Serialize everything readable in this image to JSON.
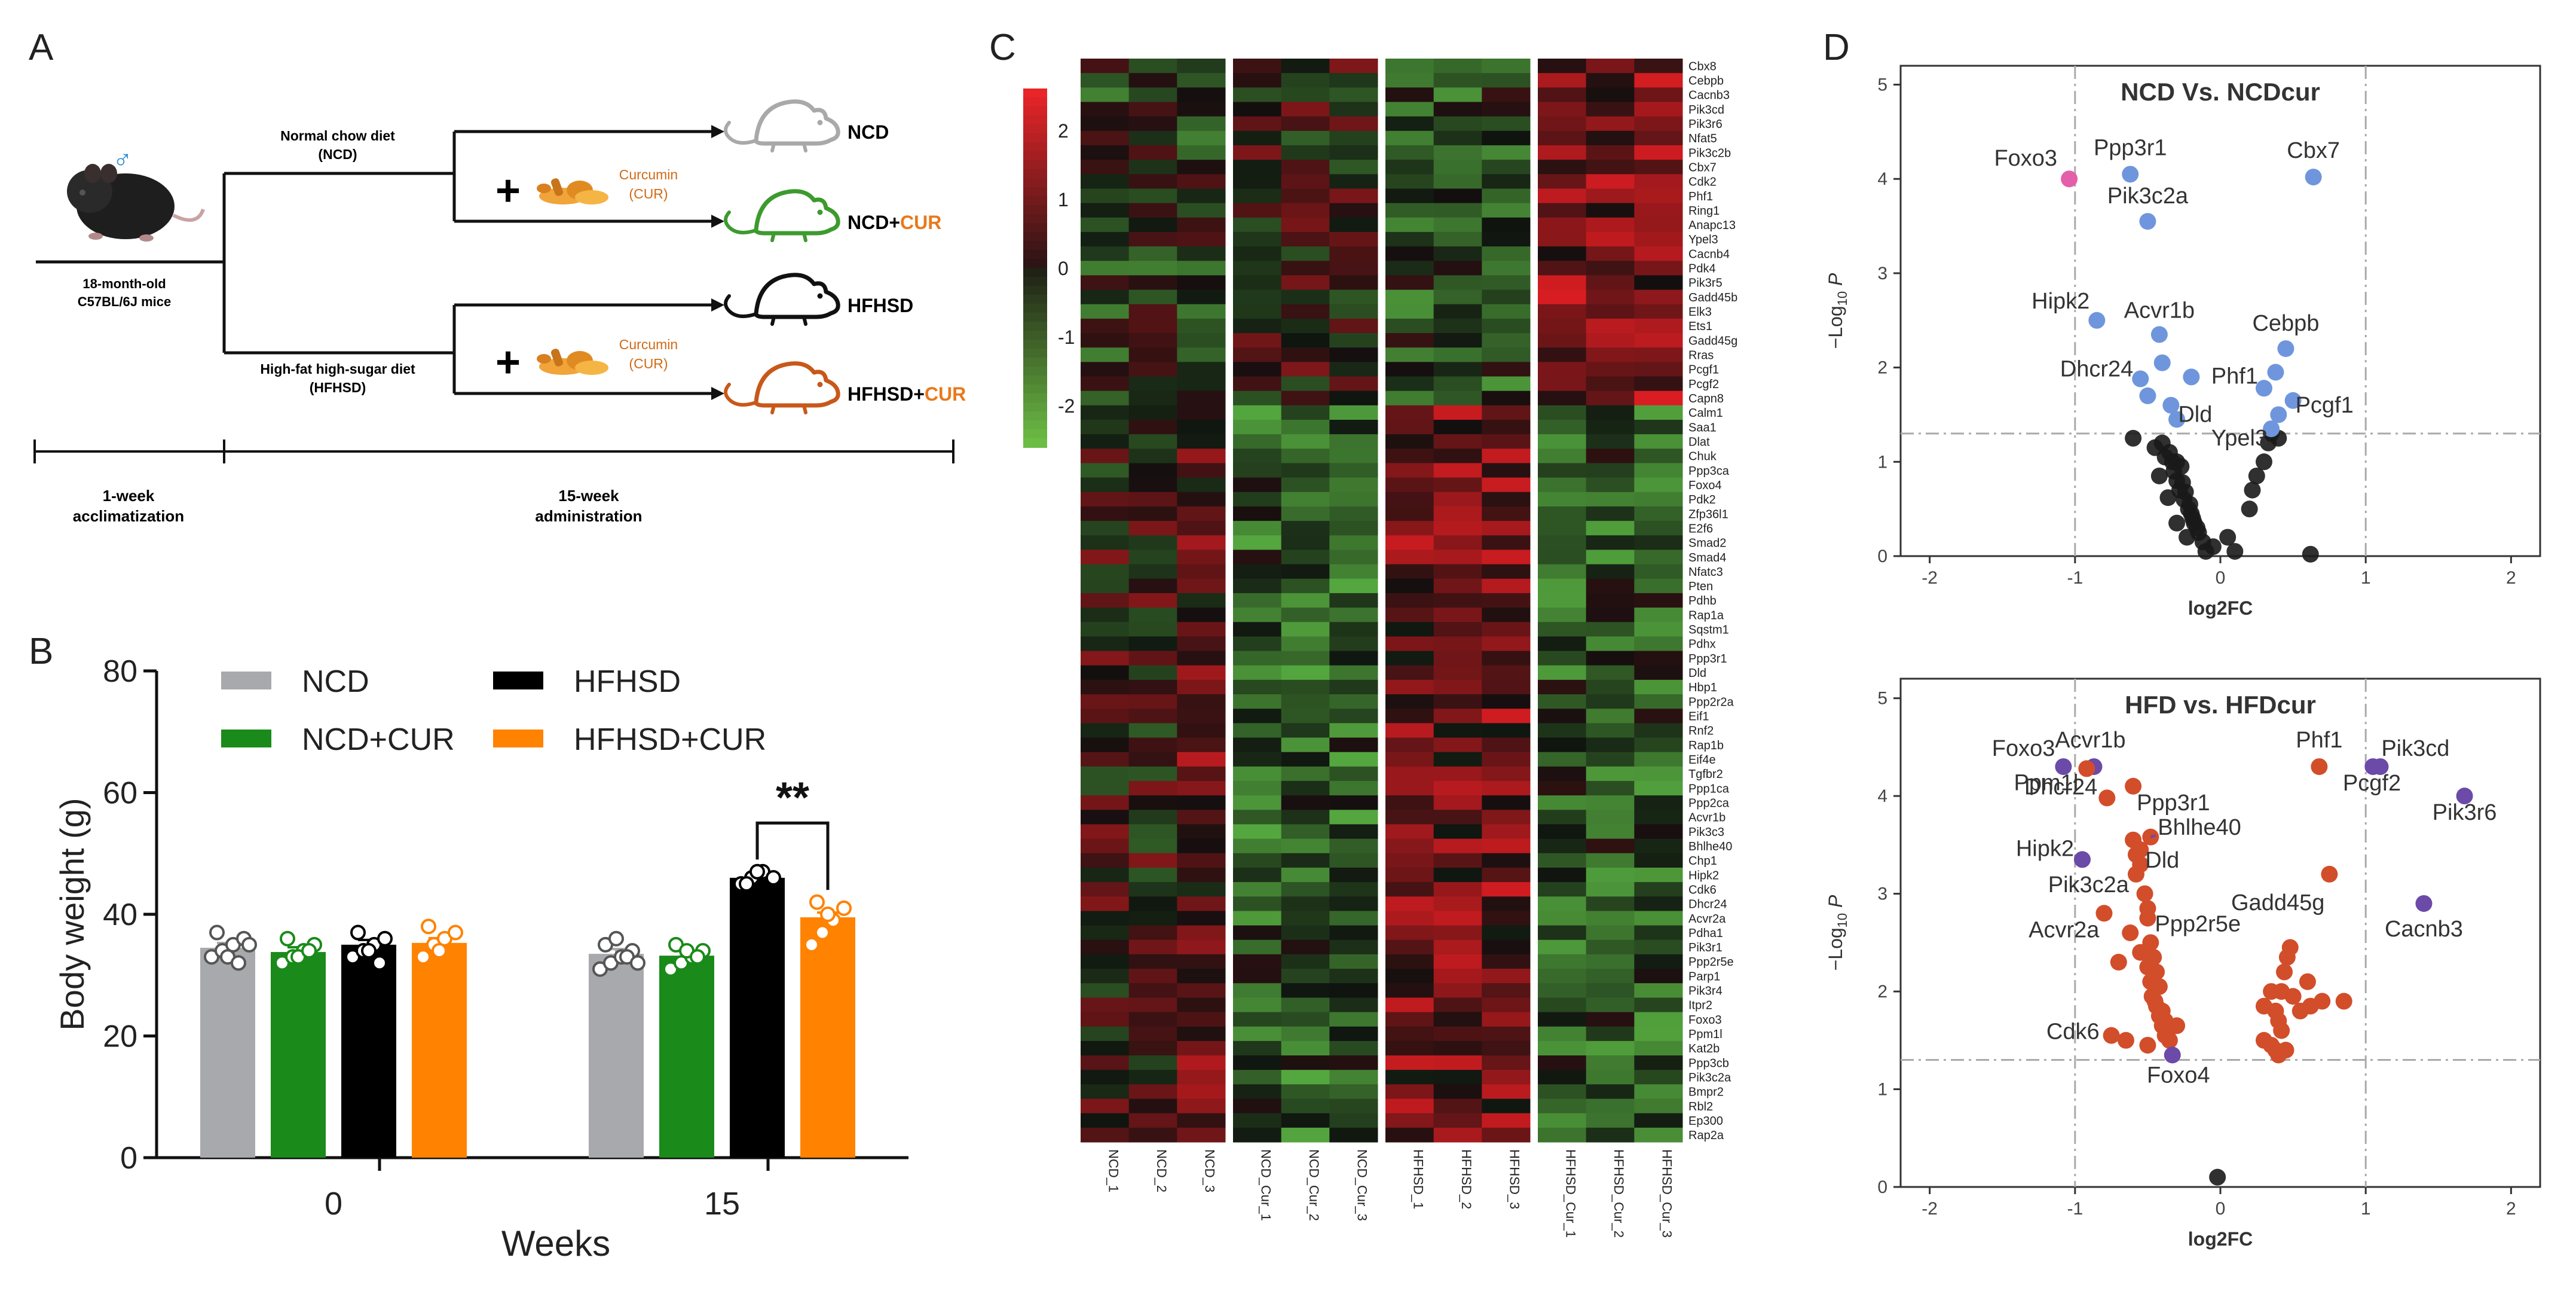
{
  "panels": {
    "a": "A",
    "b": "B",
    "c": "C",
    "d": "D"
  },
  "colors": {
    "ncd": "#a7a9ac",
    "ncdcur": "#1a8a1a",
    "hfhsd": "#000000",
    "hfhsdcur": "#ff8200",
    "heat_hi": "#e8252b",
    "heat_lo": "#6cbd45",
    "volc_blue": "#6f96dd",
    "volc_pink": "#e45fa9",
    "volc_black": "#1a1a1a",
    "volc_red": "#d24d2a",
    "volc_purple": "#6b4aa8"
  },
  "icons": {
    "mouse": "mouse-icon",
    "turmeric": "turmeric-icon",
    "male": "male-symbol-icon",
    "plus": "plus-icon"
  },
  "panel_a": {
    "male_symbol": "♂",
    "mouse_label_line1": "18-month-old",
    "mouse_label_line2": "C57BL/6J mice",
    "ncd_diet_line1": "Normal chow diet",
    "ncd_diet_line2": "(NCD)",
    "hfhsd_diet_line1": "High-fat high-sugar diet",
    "hfhsd_diet_line2": "(HFHSD)",
    "plus": "+",
    "curcumin_line1": "Curcumin",
    "curcumin_line2": "(CUR)",
    "groups": [
      {
        "base": "NCD",
        "suffix": ""
      },
      {
        "base": "NCD+",
        "suffix": "CUR"
      },
      {
        "base": "HFHSD",
        "suffix": ""
      },
      {
        "base": "HFHSD+",
        "suffix": "CUR"
      }
    ],
    "timeline_left_line1": "1-week",
    "timeline_left_line2": "acclimatization",
    "timeline_right_line1": "15-week",
    "timeline_right_line2": "administration"
  },
  "chart_data": [
    {
      "panel": "B",
      "type": "bar",
      "ylabel": "Body weight (g)",
      "xlabel": "Weeks",
      "ylim": [
        0,
        80
      ],
      "yticks": [
        0,
        20,
        40,
        60,
        80
      ],
      "categories": [
        "0",
        "15"
      ],
      "legend": [
        "NCD",
        "HFHSD",
        "NCD+CUR",
        "HFHSD+CUR"
      ],
      "significance": "**",
      "series": [
        {
          "name": "NCD",
          "values": [
            34.5,
            33.5
          ],
          "points": [
            [
              33,
              34,
              35,
              36,
              37,
              33,
              32,
              35
            ],
            [
              31,
              32,
              33,
              34,
              35,
              36,
              33,
              32
            ]
          ]
        },
        {
          "name": "NCD+CUR",
          "values": [
            33.8,
            33.2
          ],
          "points": [
            [
              32,
              33,
              34,
              35,
              36,
              33,
              34
            ],
            [
              31,
              32,
              33,
              34,
              35,
              34,
              33
            ]
          ]
        },
        {
          "name": "HFHSD",
          "values": [
            35.0,
            46.0
          ],
          "points": [
            [
              33,
              34,
              35,
              36,
              37,
              34,
              32
            ],
            [
              45,
              46,
              47,
              46,
              45,
              47
            ]
          ]
        },
        {
          "name": "HFHSD+CUR",
          "values": [
            35.3,
            39.5
          ],
          "points": [
            [
              33,
              35,
              36,
              37,
              38,
              34
            ],
            [
              35,
              37,
              39,
              41,
              42,
              40
            ]
          ]
        }
      ]
    },
    {
      "panel": "C",
      "type": "heatmap",
      "color_scale": [
        -2,
        2
      ],
      "colorbar_ticks": [
        "2",
        "1",
        "0",
        "-1",
        "-2"
      ],
      "samples": [
        "NCD_1",
        "NCD_2",
        "NCD_3",
        "NCD_Cur_1",
        "NCD_Cur_2",
        "NCD_Cur_3",
        "HFHSD_1",
        "HFHSD_2",
        "HFHSD_3",
        "HFHSD_Cur_1",
        "HFHSD_Cur_2",
        "HFHSD_Cur_3"
      ],
      "genes": [
        "Cbx8",
        "Cebpb",
        "Cacnb3",
        "Pik3cd",
        "Pik3r6",
        "Nfat5",
        "Pik3c2b",
        "Cbx7",
        "Cdk2",
        "Phf1",
        "Ring1",
        "Anapc13",
        "Ypel3",
        "Cacnb4",
        "Pdk4",
        "Pik3r5",
        "Gadd45b",
        "Elk3",
        "Ets1",
        "Gadd45g",
        "Rras",
        "Pcgf1",
        "Pcgf2",
        "Capn8",
        "Calm1",
        "Saa1",
        "Dlat",
        "Chuk",
        "Ppp3ca",
        "Foxo4",
        "Pdk2",
        "Zfp36l1",
        "E2f6",
        "Smad2",
        "Smad4",
        "Nfatc3",
        "Pten",
        "Pdhb",
        "Rap1a",
        "Sqstm1",
        "Pdhx",
        "Ppp3r1",
        "Dld",
        "Hbp1",
        "Ppp2r2a",
        "Eif1",
        "Rnf2",
        "Rap1b",
        "Eif4e",
        "Tgfbr2",
        "Ppp1ca",
        "Ppp2ca",
        "Acvr1b",
        "Pik3c3",
        "Bhlhe40",
        "Chp1",
        "Hipk2",
        "Cdk6",
        "Dhcr24",
        "Acvr2a",
        "Pdha1",
        "Pik3r1",
        "Ppp2r5e",
        "Parp1",
        "Pik3r4",
        "Itpr2",
        "Foxo3",
        "Ppm1l",
        "Kat2b",
        "Ppp3cb",
        "Pik3c2a",
        "Bmpr2",
        "Rbl2",
        "Ep300",
        "Rap2a"
      ]
    },
    {
      "panel": "D1",
      "type": "scatter",
      "title": "NCD Vs. NCDcur",
      "xlabel": "log2FC",
      "ylabel_main": "−Log",
      "ylabel_sub": "10",
      "ylabel_p": "P",
      "xlim": [
        -2.2,
        2.2
      ],
      "ylim": [
        0,
        5.2
      ],
      "xticks": [
        "-2",
        "-1",
        "0",
        "1",
        "2"
      ],
      "yticks": [
        "0",
        "1",
        "2",
        "3",
        "4",
        "5"
      ],
      "vlines": [
        -1,
        1
      ],
      "hline": 1.3,
      "labeled_points": [
        {
          "gene": "Foxo3",
          "x": -1.04,
          "y": 4.0,
          "c": "pink"
        },
        {
          "gene": "Ppp3r1",
          "x": -0.62,
          "y": 4.05,
          "c": "blue"
        },
        {
          "gene": "Cbx7",
          "x": 0.64,
          "y": 4.02,
          "c": "blue"
        },
        {
          "gene": "Pik3c2a",
          "x": -0.5,
          "y": 3.55,
          "c": "blue"
        },
        {
          "gene": "Hipk2",
          "x": -0.85,
          "y": 2.5,
          "c": "blue"
        },
        {
          "gene": "Acvr1b",
          "x": -0.42,
          "y": 2.35,
          "c": "blue"
        },
        {
          "gene": "Dhcr24",
          "x": -0.55,
          "y": 1.88,
          "c": "blue"
        },
        {
          "gene": "Dld",
          "x": -0.34,
          "y": 1.6,
          "c": "blue"
        },
        {
          "gene": "Cebpb",
          "x": 0.45,
          "y": 2.2,
          "c": "blue"
        },
        {
          "gene": "Phf1",
          "x": 0.3,
          "y": 1.78,
          "c": "blue"
        },
        {
          "gene": "Pcgf1",
          "x": 0.5,
          "y": 1.65,
          "c": "blue"
        },
        {
          "gene": "Ypel3",
          "x": 0.35,
          "y": 1.35,
          "c": "blue"
        }
      ],
      "extra_blue": [
        [
          -0.4,
          2.05
        ],
        [
          -0.5,
          1.7
        ],
        [
          -0.3,
          1.45
        ],
        [
          0.38,
          1.95
        ],
        [
          0.4,
          1.5
        ],
        [
          -0.2,
          1.9
        ]
      ],
      "black_points": [
        [
          -0.6,
          1.25
        ],
        [
          -0.4,
          1.2
        ],
        [
          -0.35,
          1.1
        ],
        [
          -0.3,
          1.0
        ],
        [
          -0.32,
          0.9
        ],
        [
          -0.3,
          0.8
        ],
        [
          -0.28,
          0.7
        ],
        [
          -0.25,
          0.6
        ],
        [
          -0.22,
          0.5
        ],
        [
          -0.2,
          0.45
        ],
        [
          -0.18,
          0.35
        ],
        [
          -0.15,
          0.25
        ],
        [
          -0.12,
          0.15
        ],
        [
          -0.1,
          0.05
        ],
        [
          -0.38,
          1.05
        ],
        [
          -0.27,
          0.95
        ],
        [
          -0.26,
          0.78
        ],
        [
          -0.24,
          0.68
        ],
        [
          -0.21,
          0.55
        ],
        [
          -0.19,
          0.4
        ],
        [
          -0.16,
          0.3
        ],
        [
          -0.42,
          0.85
        ],
        [
          -0.36,
          0.62
        ],
        [
          -0.3,
          0.35
        ],
        [
          -0.05,
          0.1
        ],
        [
          0.05,
          0.2
        ],
        [
          0.1,
          0.05
        ],
        [
          0.2,
          0.5
        ],
        [
          0.22,
          0.7
        ],
        [
          0.25,
          0.85
        ],
        [
          0.3,
          1.0
        ],
        [
          0.33,
          1.2
        ],
        [
          0.35,
          1.3
        ],
        [
          0.4,
          1.25
        ],
        [
          0.62,
          0.02
        ],
        [
          -0.45,
          1.15
        ],
        [
          -0.33,
          1.0
        ],
        [
          -0.23,
          0.2
        ]
      ]
    },
    {
      "panel": "D2",
      "type": "scatter",
      "title": "HFD vs. HFDcur",
      "xlabel": "log2FC",
      "ylabel_main": "−Log",
      "ylabel_sub": "10",
      "ylabel_p": "P",
      "xlim": [
        -2.2,
        2.2
      ],
      "ylim": [
        0,
        5.2
      ],
      "xticks": [
        "-2",
        "-1",
        "0",
        "1",
        "2"
      ],
      "yticks": [
        "0",
        "1",
        "2",
        "3",
        "4",
        "5"
      ],
      "vlines": [
        -1,
        1
      ],
      "hline": 1.3,
      "labeled_points": [
        {
          "gene": "Foxo3",
          "x": -1.08,
          "y": 4.3,
          "c": "purple"
        },
        {
          "gene": "Acvr1b",
          "x": -0.87,
          "y": 4.3,
          "c": "purple"
        },
        {
          "gene": "Ppm1l",
          "x": -0.92,
          "y": 4.28,
          "c": "red"
        },
        {
          "gene": "Ppp3r1",
          "x": -0.6,
          "y": 4.1,
          "c": "red"
        },
        {
          "gene": "Phf1",
          "x": 0.68,
          "y": 4.3,
          "c": "red"
        },
        {
          "gene": "Pik3cd",
          "x": 1.05,
          "y": 4.3,
          "c": "purple"
        },
        {
          "gene": "Pcgf2",
          "x": 1.1,
          "y": 4.3,
          "c": "purple"
        },
        {
          "gene": "Pik3r6",
          "x": 1.68,
          "y": 4.0,
          "c": "purple"
        },
        {
          "gene": "Dhcr24",
          "x": -0.78,
          "y": 3.98,
          "c": "red"
        },
        {
          "gene": "Bhlhe40",
          "x": -0.48,
          "y": 3.58,
          "c": "red"
        },
        {
          "gene": "Hipk2",
          "x": -0.95,
          "y": 3.35,
          "c": "purple"
        },
        {
          "gene": "Dld",
          "x": -0.55,
          "y": 3.45,
          "c": "red"
        },
        {
          "gene": "Pik3c2a",
          "x": -0.58,
          "y": 3.2,
          "c": "red"
        },
        {
          "gene": "Ppp2r5e",
          "x": -0.5,
          "y": 2.75,
          "c": "red"
        },
        {
          "gene": "Gadd45g",
          "x": 0.75,
          "y": 3.2,
          "c": "red"
        },
        {
          "gene": "Cacnb3",
          "x": 1.4,
          "y": 2.9,
          "c": "purple"
        },
        {
          "gene": "Acvr2a",
          "x": -0.8,
          "y": 2.8,
          "c": "red"
        },
        {
          "gene": "Cdk6",
          "x": -0.75,
          "y": 1.55,
          "c": "red"
        },
        {
          "gene": "Foxo4",
          "x": -0.33,
          "y": 1.35,
          "c": "purple"
        }
      ],
      "red_points": [
        [
          -0.6,
          3.55
        ],
        [
          -0.58,
          3.4
        ],
        [
          -0.55,
          3.3
        ],
        [
          -0.52,
          3.0
        ],
        [
          -0.5,
          2.85
        ],
        [
          -0.48,
          2.5
        ],
        [
          -0.46,
          2.35
        ],
        [
          -0.44,
          2.2
        ],
        [
          -0.42,
          2.05
        ],
        [
          -0.45,
          1.9
        ],
        [
          -0.4,
          1.8
        ],
        [
          -0.38,
          1.7
        ],
        [
          -0.36,
          1.6
        ],
        [
          -0.35,
          1.5
        ],
        [
          -0.62,
          2.6
        ],
        [
          -0.55,
          2.4
        ],
        [
          -0.5,
          2.25
        ],
        [
          -0.48,
          2.1
        ],
        [
          -0.47,
          1.95
        ],
        [
          -0.44,
          1.85
        ],
        [
          -0.42,
          1.75
        ],
        [
          -0.4,
          1.65
        ],
        [
          -0.38,
          1.55
        ],
        [
          -0.5,
          1.45
        ],
        [
          -0.65,
          1.5
        ],
        [
          -0.7,
          2.3
        ],
        [
          0.3,
          1.5
        ],
        [
          0.35,
          1.45
        ],
        [
          0.38,
          1.4
        ],
        [
          0.4,
          1.35
        ],
        [
          0.45,
          1.4
        ],
        [
          0.42,
          1.6
        ],
        [
          0.4,
          1.7
        ],
        [
          0.38,
          1.8
        ],
        [
          0.42,
          2.0
        ],
        [
          0.44,
          2.2
        ],
        [
          0.46,
          2.35
        ],
        [
          0.48,
          2.45
        ],
        [
          0.5,
          1.95
        ],
        [
          0.55,
          1.8
        ],
        [
          0.62,
          1.85
        ],
        [
          0.7,
          1.9
        ],
        [
          0.85,
          1.9
        ],
        [
          0.6,
          2.1
        ],
        [
          0.3,
          1.85
        ],
        [
          0.35,
          2.0
        ],
        [
          -0.3,
          1.65
        ]
      ],
      "black_points": [
        [
          -0.02,
          0.1
        ]
      ]
    }
  ]
}
